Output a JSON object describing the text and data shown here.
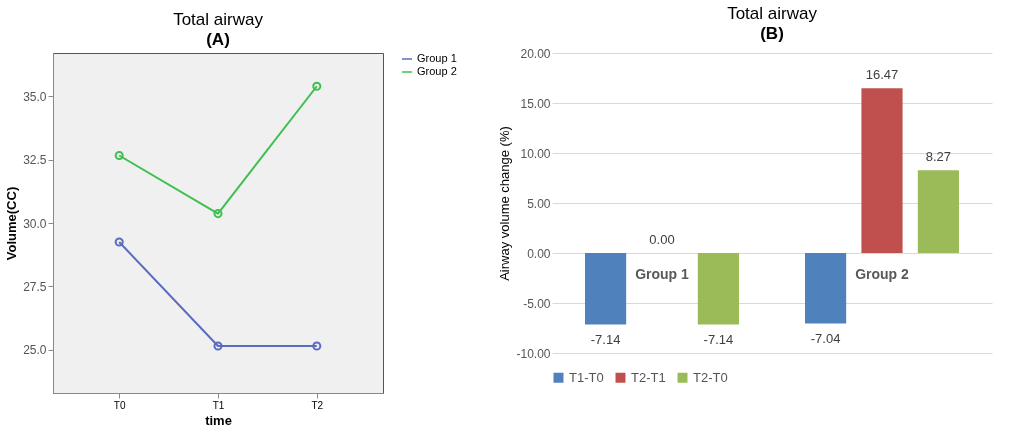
{
  "chart_data": [
    {
      "type": "line",
      "title": "Total airway",
      "xlabel": "time",
      "ylabel": "Volume(CC)",
      "annotations": [
        "(A)"
      ],
      "categories": [
        "T0",
        "T1",
        "T2"
      ],
      "series": [
        {
          "name": "Group 1",
          "color": "#5b6bbf",
          "values": [
            29.25,
            25.15,
            25.15
          ]
        },
        {
          "name": "Group 2",
          "color": "#3fbf4f",
          "values": [
            32.66,
            30.37,
            35.39
          ]
        }
      ],
      "ylim": [
        23.3,
        36.7
      ],
      "yticks": [
        {
          "value": 25,
          "label": "25.0"
        },
        {
          "value": 27.5,
          "label": "27.5"
        },
        {
          "value": 30,
          "label": "30.0"
        },
        {
          "value": 32.5,
          "label": "32.5"
        },
        {
          "value": 35,
          "label": "35.0"
        }
      ],
      "marker": "circle",
      "grid": false,
      "legend": "top right"
    },
    {
      "type": "bar",
      "title": "Total airway",
      "ylabel": "Airway volume change (%)",
      "annotations": [
        "(B)"
      ],
      "categories": [
        "Group 1",
        "Group 2"
      ],
      "series": [
        {
          "name": "T1-T0",
          "color": "#4f81bd",
          "values": [
            -7.14,
            -7.04
          ],
          "value_labels": [
            "-7.14",
            "-7.04"
          ]
        },
        {
          "name": "T2-T1",
          "color": "#c0504d",
          "values": [
            0.0,
            16.47
          ],
          "value_labels": [
            "0.00",
            "16.47"
          ]
        },
        {
          "name": "T2-T0",
          "color": "#9bbb59",
          "values": [
            -7.14,
            8.27
          ],
          "value_labels": [
            "-7.14",
            "8.27"
          ]
        }
      ],
      "ylim": [
        -10,
        20
      ],
      "yticks": [
        {
          "value": -10,
          "label": "-10.00"
        },
        {
          "value": -5,
          "label": "-5.00"
        },
        {
          "value": 0,
          "label": "0.00"
        },
        {
          "value": 5,
          "label": "5.00"
        },
        {
          "value": 10,
          "label": "10.00"
        },
        {
          "value": 15,
          "label": "15.00"
        },
        {
          "value": 20,
          "label": "20.00"
        }
      ],
      "grid": "y",
      "legend": "bottom"
    }
  ]
}
